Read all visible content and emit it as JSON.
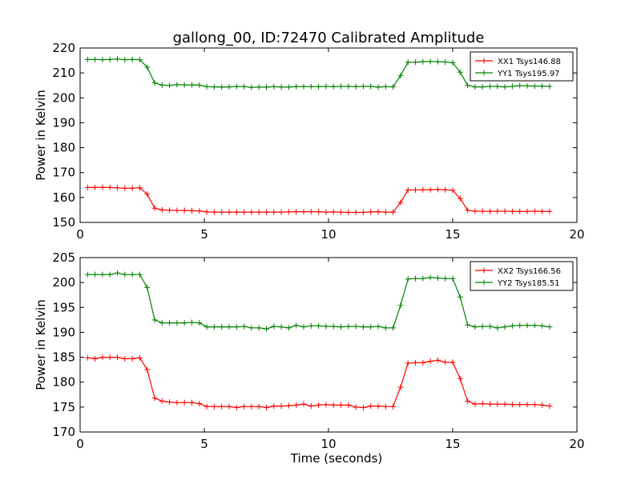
{
  "figure": {
    "title": "gallong_00, ID:72470 Calibrated Amplitude"
  },
  "chart_data": [
    {
      "type": "line",
      "title": "gallong_00, ID:72470 Calibrated Amplitude",
      "xlabel": "",
      "ylabel": "Power in Kelvin",
      "xlim": [
        0,
        20
      ],
      "ylim": [
        150,
        220
      ],
      "xticks": [
        0,
        5,
        10,
        15,
        20
      ],
      "yticks": [
        150,
        160,
        170,
        180,
        190,
        200,
        210,
        220
      ],
      "grid": false,
      "legend_position": "top-right",
      "x": [
        0.3,
        0.6,
        0.9,
        1.2,
        1.5,
        1.8,
        2.1,
        2.4,
        2.7,
        3.0,
        3.3,
        3.6,
        3.9,
        4.2,
        4.5,
        4.8,
        5.1,
        5.4,
        5.7,
        6.0,
        6.3,
        6.6,
        6.9,
        7.2,
        7.5,
        7.8,
        8.1,
        8.4,
        8.7,
        9.0,
        9.3,
        9.6,
        9.9,
        10.2,
        10.5,
        10.8,
        11.1,
        11.4,
        11.7,
        12.0,
        12.3,
        12.6,
        12.9,
        13.2,
        13.5,
        13.8,
        14.1,
        14.4,
        14.7,
        15.0,
        15.3,
        15.6,
        15.9,
        16.2,
        16.5,
        16.8,
        17.1,
        17.4,
        17.7,
        18.0,
        18.3,
        18.6,
        18.9
      ],
      "series": [
        {
          "name": "XX1 Tsys146.88",
          "color": "#ff0000",
          "values": [
            164.0,
            164.0,
            164.1,
            164.0,
            163.9,
            163.7,
            163.7,
            163.9,
            161.3,
            155.7,
            155.0,
            154.9,
            154.8,
            154.8,
            154.7,
            154.6,
            154.2,
            154.1,
            154.1,
            154.1,
            154.1,
            154.1,
            154.1,
            154.1,
            154.1,
            154.1,
            154.1,
            154.2,
            154.3,
            154.3,
            154.3,
            154.3,
            154.1,
            154.2,
            154.1,
            154.0,
            154.0,
            154.0,
            154.2,
            154.3,
            154.1,
            154.1,
            158.0,
            163.0,
            163.0,
            163.1,
            163.1,
            163.2,
            163.1,
            162.9,
            159.6,
            154.9,
            154.5,
            154.5,
            154.4,
            154.5,
            154.5,
            154.4,
            154.4,
            154.4,
            154.5,
            154.4,
            154.4
          ]
        },
        {
          "name": "YY1 Tsys195.97",
          "color": "#008000",
          "values": [
            215.4,
            215.4,
            215.3,
            215.4,
            215.6,
            215.3,
            215.4,
            215.3,
            212.3,
            206.0,
            205.1,
            205.0,
            205.3,
            205.2,
            205.2,
            205.1,
            204.5,
            204.4,
            204.3,
            204.4,
            204.6,
            204.5,
            204.2,
            204.3,
            204.3,
            204.5,
            204.3,
            204.3,
            204.5,
            204.5,
            204.5,
            204.5,
            204.6,
            204.5,
            204.6,
            204.6,
            204.5,
            204.6,
            204.6,
            204.3,
            204.5,
            204.4,
            208.9,
            214.3,
            214.3,
            214.5,
            214.6,
            214.5,
            214.4,
            214.1,
            210.3,
            205.0,
            204.4,
            204.4,
            204.6,
            204.6,
            204.4,
            204.6,
            204.9,
            204.8,
            204.7,
            204.7,
            204.6
          ]
        }
      ]
    },
    {
      "type": "line",
      "title": "",
      "xlabel": "Time (seconds)",
      "ylabel": "Power in Kelvin",
      "xlim": [
        0,
        20
      ],
      "ylim": [
        170,
        205
      ],
      "xticks": [
        0,
        5,
        10,
        15,
        20
      ],
      "yticks": [
        170,
        175,
        180,
        185,
        190,
        195,
        200,
        205
      ],
      "grid": false,
      "legend_position": "top-right",
      "x": [
        0.3,
        0.6,
        0.9,
        1.2,
        1.5,
        1.8,
        2.1,
        2.4,
        2.7,
        3.0,
        3.3,
        3.6,
        3.9,
        4.2,
        4.5,
        4.8,
        5.1,
        5.4,
        5.7,
        6.0,
        6.3,
        6.6,
        6.9,
        7.2,
        7.5,
        7.8,
        8.1,
        8.4,
        8.7,
        9.0,
        9.3,
        9.6,
        9.9,
        10.2,
        10.5,
        10.8,
        11.1,
        11.4,
        11.7,
        12.0,
        12.3,
        12.6,
        12.9,
        13.2,
        13.5,
        13.8,
        14.1,
        14.4,
        14.7,
        15.0,
        15.3,
        15.6,
        15.9,
        16.2,
        16.5,
        16.8,
        17.1,
        17.4,
        17.7,
        18.0,
        18.3,
        18.6,
        18.9
      ],
      "series": [
        {
          "name": "XX2 Tsys166.56",
          "color": "#ff0000",
          "values": [
            184.9,
            184.7,
            185.0,
            185.0,
            185.0,
            184.7,
            184.7,
            184.9,
            182.5,
            176.8,
            176.2,
            176.0,
            175.9,
            175.9,
            175.9,
            175.7,
            175.1,
            175.1,
            175.1,
            175.1,
            174.9,
            175.1,
            175.1,
            175.1,
            174.9,
            175.2,
            175.2,
            175.3,
            175.4,
            175.6,
            175.2,
            175.4,
            175.5,
            175.4,
            175.4,
            175.4,
            175.0,
            174.9,
            175.2,
            175.2,
            175.1,
            175.1,
            179.0,
            183.8,
            183.9,
            183.9,
            184.2,
            184.4,
            184.0,
            184.0,
            180.7,
            176.2,
            175.6,
            175.7,
            175.6,
            175.6,
            175.6,
            175.5,
            175.5,
            175.5,
            175.5,
            175.4,
            175.2
          ]
        },
        {
          "name": "YY2 Tsys185.51",
          "color": "#008000",
          "values": [
            201.6,
            201.6,
            201.6,
            201.6,
            201.9,
            201.6,
            201.6,
            201.6,
            199.0,
            192.5,
            191.9,
            191.9,
            191.9,
            191.9,
            192.0,
            191.9,
            191.1,
            191.1,
            191.1,
            191.1,
            191.1,
            191.2,
            190.9,
            190.9,
            190.7,
            191.2,
            191.1,
            190.9,
            191.4,
            191.1,
            191.3,
            191.3,
            191.2,
            191.2,
            191.1,
            191.2,
            191.2,
            191.1,
            191.1,
            191.2,
            190.9,
            190.9,
            195.4,
            200.7,
            200.8,
            200.8,
            201.0,
            200.9,
            200.8,
            200.8,
            197.1,
            191.5,
            191.1,
            191.2,
            191.2,
            190.9,
            191.1,
            191.3,
            191.4,
            191.4,
            191.4,
            191.3,
            191.1
          ]
        }
      ]
    }
  ]
}
